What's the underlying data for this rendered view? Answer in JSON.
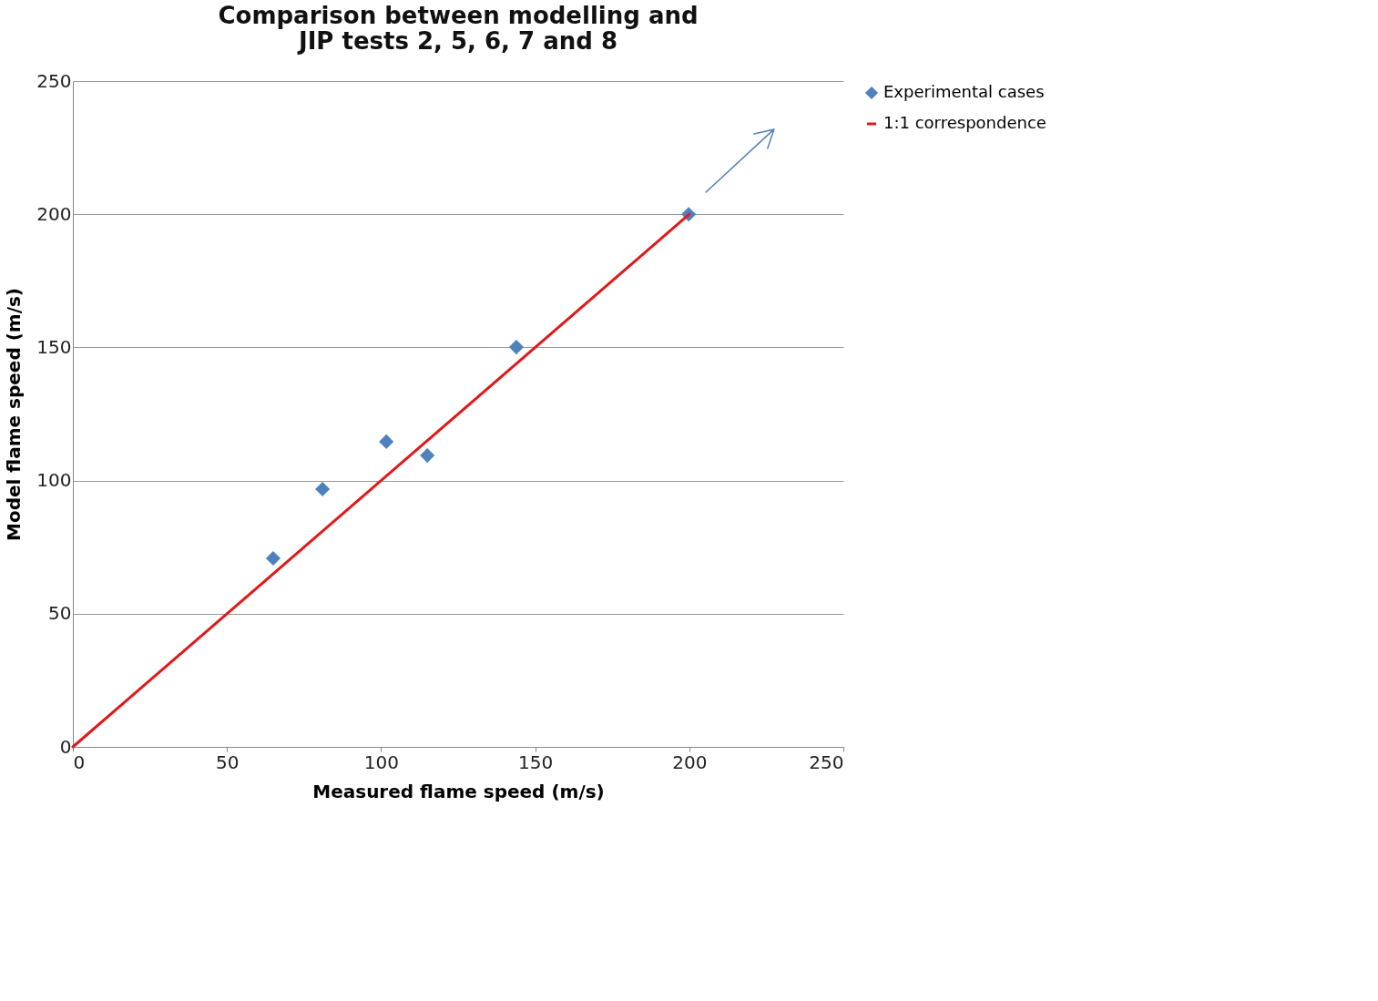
{
  "chart_data": {
    "type": "scatter",
    "title": "Comparison between modelling and\nJIP tests 2, 5, 6, 7 and 8",
    "xlabel": "Measured flame speed (m/s)",
    "ylabel": "Model flame speed (m/s)",
    "xlim": [
      0,
      250
    ],
    "ylim": [
      0,
      250
    ],
    "xticks": [
      0,
      50,
      100,
      150,
      200,
      250
    ],
    "yticks": [
      0,
      50,
      100,
      150,
      200,
      250
    ],
    "grid": "y",
    "legend": "right",
    "series": [
      {
        "name": "Experimental cases",
        "marker": "diamond",
        "color": "#4f81bd",
        "x": [
          65,
          81,
          101.7,
          115,
          143.9,
          199.8
        ],
        "values": [
          70.8,
          96.8,
          114.6,
          109.4,
          150.1,
          200
        ]
      },
      {
        "name": "1:1 correspondence",
        "type": "line",
        "marker": "none",
        "color": "#e0191b",
        "line_style": "solid",
        "x": [
          0,
          200
        ],
        "values": [
          0,
          200
        ]
      },
      {
        "type": "line",
        "marker": "none",
        "color": "#4f81bd",
        "line_style": "solid",
        "x": [
          221,
          227.5,
          225.4,
          227.5,
          205.4
        ],
        "values": [
          230.2,
          231.9,
          224.7,
          231.9,
          208.3
        ]
      }
    ]
  }
}
